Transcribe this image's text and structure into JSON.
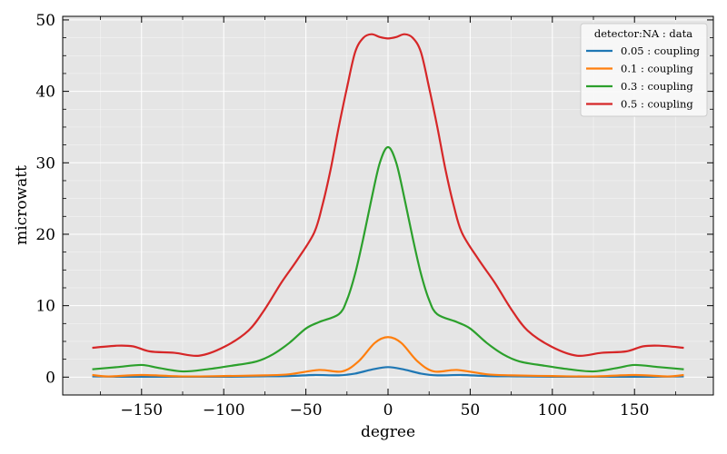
{
  "chart_data": {
    "type": "line",
    "title": "",
    "xlabel": "degree",
    "ylabel": "microwatt",
    "xlim": [
      -198,
      198
    ],
    "ylim": [
      -2.5,
      50.5
    ],
    "xticks": [
      -150,
      -100,
      -50,
      0,
      50,
      100,
      150
    ],
    "xtick_labels": [
      "−150",
      "−100",
      "−50",
      "0",
      "50",
      "100",
      "150"
    ],
    "yticks": [
      0,
      10,
      20,
      30,
      40,
      50
    ],
    "ytick_labels": [
      "0",
      "10",
      "20",
      "30",
      "40",
      "50"
    ],
    "grid": true,
    "background": "#e5e5e5",
    "legend": {
      "title": "detector:NA : data",
      "placement": "top-right"
    },
    "series": [
      {
        "name": "0.05 : coupling",
        "color": "#1f77b4",
        "x": [
          -180,
          -160,
          -140,
          -120,
          -100,
          -80,
          -60,
          -45,
          -30,
          -20,
          -10,
          0,
          10,
          20,
          30,
          45,
          60,
          80,
          100,
          120,
          140,
          160,
          180
        ],
        "y": [
          0.1,
          0.05,
          0.05,
          0.05,
          0.05,
          0.1,
          0.15,
          0.3,
          0.25,
          0.5,
          1.05,
          1.4,
          1.05,
          0.5,
          0.25,
          0.3,
          0.15,
          0.1,
          0.05,
          0.05,
          0.05,
          0.05,
          0.1
        ]
      },
      {
        "name": "0.1 : coupling",
        "color": "#ff7f0e",
        "x": [
          -180,
          -170,
          -150,
          -125,
          -100,
          -75,
          -60,
          -42,
          -28,
          -18,
          -8,
          0,
          8,
          18,
          28,
          42,
          60,
          75,
          100,
          125,
          150,
          170,
          180
        ],
        "y": [
          0.3,
          0.1,
          0.3,
          0.1,
          0.15,
          0.25,
          0.4,
          1.0,
          0.8,
          2.2,
          4.8,
          5.6,
          4.8,
          2.2,
          0.8,
          1.0,
          0.4,
          0.25,
          0.15,
          0.1,
          0.3,
          0.1,
          0.3
        ]
      },
      {
        "name": "0.3 : coupling",
        "color": "#2ca02c",
        "x": [
          -180,
          -165,
          -150,
          -140,
          -125,
          -110,
          -95,
          -80,
          -70,
          -60,
          -50,
          -42,
          -30,
          -25,
          -20,
          -15,
          -10,
          -5,
          0,
          5,
          10,
          15,
          20,
          25,
          30,
          42,
          50,
          60,
          70,
          80,
          95,
          110,
          125,
          140,
          150,
          165,
          180
        ],
        "y": [
          1.1,
          1.4,
          1.7,
          1.3,
          0.8,
          1.1,
          1.6,
          2.2,
          3.2,
          4.8,
          6.8,
          7.7,
          8.8,
          10.8,
          14.5,
          19.5,
          25.0,
          30.0,
          32.2,
          30.0,
          25.0,
          19.5,
          14.5,
          10.8,
          8.8,
          7.7,
          6.8,
          4.8,
          3.2,
          2.2,
          1.6,
          1.1,
          0.8,
          1.3,
          1.7,
          1.4,
          1.1
        ]
      },
      {
        "name": "0.5 : coupling",
        "color": "#d62728",
        "x": [
          -180,
          -165,
          -155,
          -145,
          -130,
          -115,
          -100,
          -85,
          -75,
          -65,
          -55,
          -45,
          -40,
          -35,
          -30,
          -25,
          -20,
          -15,
          -10,
          -5,
          0,
          5,
          10,
          15,
          20,
          25,
          30,
          35,
          40,
          45,
          55,
          65,
          75,
          85,
          100,
          115,
          130,
          145,
          155,
          165,
          180
        ],
        "y": [
          4.1,
          4.4,
          4.3,
          3.6,
          3.4,
          3.0,
          4.2,
          6.5,
          9.5,
          13.2,
          16.5,
          20.2,
          24.0,
          29.0,
          35.0,
          40.5,
          45.5,
          47.5,
          48.0,
          47.6,
          47.4,
          47.6,
          48.0,
          47.5,
          45.5,
          40.5,
          35.0,
          29.0,
          24.0,
          20.2,
          16.5,
          13.2,
          9.5,
          6.5,
          4.2,
          3.0,
          3.4,
          3.6,
          4.3,
          4.4,
          4.1
        ]
      }
    ]
  }
}
